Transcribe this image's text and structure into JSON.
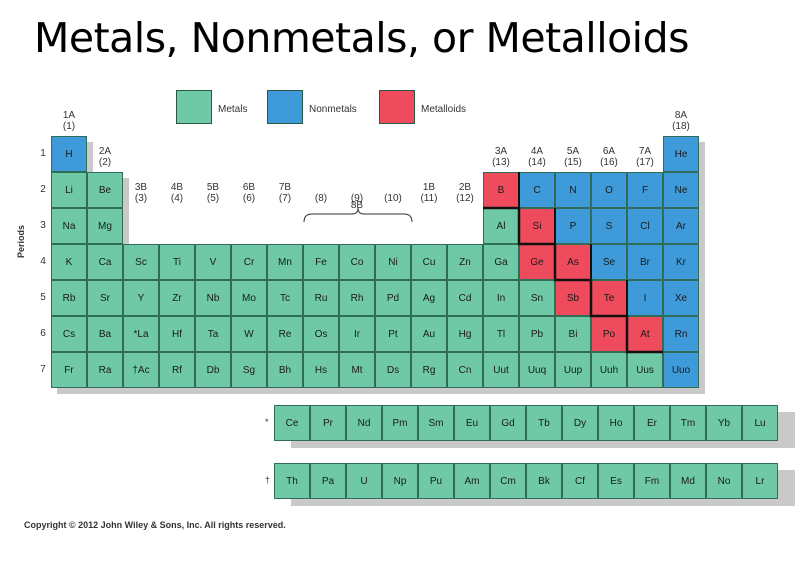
{
  "title": "Metals, Nonmetals, or Metalloids",
  "legend": [
    {
      "label": "Metals",
      "color": "#6fc9a7"
    },
    {
      "label": "Nonmetals",
      "color": "#3f9ad9"
    },
    {
      "label": "Metalloids",
      "color": "#ee4c5c"
    }
  ],
  "colors": {
    "metal": "#6fc9a7",
    "nonmetal": "#3f9ad9",
    "metalloid": "#ee4c5c"
  },
  "periods_label": "Periods",
  "periods": [
    "1",
    "2",
    "3",
    "4",
    "5",
    "6",
    "7"
  ],
  "group_headers": [
    {
      "col": 0,
      "row": 0,
      "label": "1A",
      "num": "(1)"
    },
    {
      "col": 1,
      "row": 1,
      "label": "2A",
      "num": "(2)"
    },
    {
      "col": 2,
      "row": 2,
      "label": "3B",
      "num": "(3)"
    },
    {
      "col": 3,
      "row": 2,
      "label": "4B",
      "num": "(4)"
    },
    {
      "col": 4,
      "row": 2,
      "label": "5B",
      "num": "(5)"
    },
    {
      "col": 5,
      "row": 2,
      "label": "6B",
      "num": "(6)"
    },
    {
      "col": 6,
      "row": 2,
      "label": "7B",
      "num": "(7)"
    },
    {
      "col": 7,
      "row": 2,
      "label": "",
      "num": "(8)"
    },
    {
      "col": 8,
      "row": 2,
      "label": "",
      "num": "(9)"
    },
    {
      "col": 9,
      "row": 2,
      "label": "",
      "num": "(10)"
    },
    {
      "col": 10,
      "row": 2,
      "label": "1B",
      "num": "(11)"
    },
    {
      "col": 11,
      "row": 2,
      "label": "2B",
      "num": "(12)"
    },
    {
      "col": 12,
      "row": 1,
      "label": "3A",
      "num": "(13)"
    },
    {
      "col": 13,
      "row": 1,
      "label": "4A",
      "num": "(14)"
    },
    {
      "col": 14,
      "row": 1,
      "label": "5A",
      "num": "(15)"
    },
    {
      "col": 15,
      "row": 1,
      "label": "6A",
      "num": "(16)"
    },
    {
      "col": 16,
      "row": 1,
      "label": "7A",
      "num": "(17)"
    },
    {
      "col": 17,
      "row": 0,
      "label": "8A",
      "num": "(18)"
    }
  ],
  "group_8b_label": "8B",
  "elements": [
    [
      "H",
      "nonmetal",
      0,
      0
    ],
    [
      "He",
      "nonmetal",
      17,
      0
    ],
    [
      "Li",
      "metal",
      0,
      1
    ],
    [
      "Be",
      "metal",
      1,
      1
    ],
    [
      "B",
      "metalloid",
      12,
      1
    ],
    [
      "C",
      "nonmetal",
      13,
      1
    ],
    [
      "N",
      "nonmetal",
      14,
      1
    ],
    [
      "O",
      "nonmetal",
      15,
      1
    ],
    [
      "F",
      "nonmetal",
      16,
      1
    ],
    [
      "Ne",
      "nonmetal",
      17,
      1
    ],
    [
      "Na",
      "metal",
      0,
      2
    ],
    [
      "Mg",
      "metal",
      1,
      2
    ],
    [
      "Al",
      "metal",
      12,
      2
    ],
    [
      "Si",
      "metalloid",
      13,
      2
    ],
    [
      "P",
      "nonmetal",
      14,
      2
    ],
    [
      "S",
      "nonmetal",
      15,
      2
    ],
    [
      "Cl",
      "nonmetal",
      16,
      2
    ],
    [
      "Ar",
      "nonmetal",
      17,
      2
    ],
    [
      "K",
      "metal",
      0,
      3
    ],
    [
      "Ca",
      "metal",
      1,
      3
    ],
    [
      "Sc",
      "metal",
      2,
      3
    ],
    [
      "Ti",
      "metal",
      3,
      3
    ],
    [
      "V",
      "metal",
      4,
      3
    ],
    [
      "Cr",
      "metal",
      5,
      3
    ],
    [
      "Mn",
      "metal",
      6,
      3
    ],
    [
      "Fe",
      "metal",
      7,
      3
    ],
    [
      "Co",
      "metal",
      8,
      3
    ],
    [
      "Ni",
      "metal",
      9,
      3
    ],
    [
      "Cu",
      "metal",
      10,
      3
    ],
    [
      "Zn",
      "metal",
      11,
      3
    ],
    [
      "Ga",
      "metal",
      12,
      3
    ],
    [
      "Ge",
      "metalloid",
      13,
      3
    ],
    [
      "As",
      "metalloid",
      14,
      3
    ],
    [
      "Se",
      "nonmetal",
      15,
      3
    ],
    [
      "Br",
      "nonmetal",
      16,
      3
    ],
    [
      "Kr",
      "nonmetal",
      17,
      3
    ],
    [
      "Rb",
      "metal",
      0,
      4
    ],
    [
      "Sr",
      "metal",
      1,
      4
    ],
    [
      "Y",
      "metal",
      2,
      4
    ],
    [
      "Zr",
      "metal",
      3,
      4
    ],
    [
      "Nb",
      "metal",
      4,
      4
    ],
    [
      "Mo",
      "metal",
      5,
      4
    ],
    [
      "Tc",
      "metal",
      6,
      4
    ],
    [
      "Ru",
      "metal",
      7,
      4
    ],
    [
      "Rh",
      "metal",
      8,
      4
    ],
    [
      "Pd",
      "metal",
      9,
      4
    ],
    [
      "Ag",
      "metal",
      10,
      4
    ],
    [
      "Cd",
      "metal",
      11,
      4
    ],
    [
      "In",
      "metal",
      12,
      4
    ],
    [
      "Sn",
      "metal",
      13,
      4
    ],
    [
      "Sb",
      "metalloid",
      14,
      4
    ],
    [
      "Te",
      "metalloid",
      15,
      4
    ],
    [
      "I",
      "nonmetal",
      16,
      4
    ],
    [
      "Xe",
      "nonmetal",
      17,
      4
    ],
    [
      "Cs",
      "metal",
      0,
      5
    ],
    [
      "Ba",
      "metal",
      1,
      5
    ],
    [
      "*La",
      "metal",
      2,
      5
    ],
    [
      "Hf",
      "metal",
      3,
      5
    ],
    [
      "Ta",
      "metal",
      4,
      5
    ],
    [
      "W",
      "metal",
      5,
      5
    ],
    [
      "Re",
      "metal",
      6,
      5
    ],
    [
      "Os",
      "metal",
      7,
      5
    ],
    [
      "Ir",
      "metal",
      8,
      5
    ],
    [
      "Pt",
      "metal",
      9,
      5
    ],
    [
      "Au",
      "metal",
      10,
      5
    ],
    [
      "Hg",
      "metal",
      11,
      5
    ],
    [
      "Tl",
      "metal",
      12,
      5
    ],
    [
      "Pb",
      "metal",
      13,
      5
    ],
    [
      "Bi",
      "metal",
      14,
      5
    ],
    [
      "Po",
      "metalloid",
      15,
      5
    ],
    [
      "At",
      "metalloid",
      16,
      5
    ],
    [
      "Rn",
      "nonmetal",
      17,
      5
    ],
    [
      "Fr",
      "metal",
      0,
      6
    ],
    [
      "Ra",
      "metal",
      1,
      6
    ],
    [
      "†Ac",
      "metal",
      2,
      6
    ],
    [
      "Rf",
      "metal",
      3,
      6
    ],
    [
      "Db",
      "metal",
      4,
      6
    ],
    [
      "Sg",
      "metal",
      5,
      6
    ],
    [
      "Bh",
      "metal",
      6,
      6
    ],
    [
      "Hs",
      "metal",
      7,
      6
    ],
    [
      "Mt",
      "metal",
      8,
      6
    ],
    [
      "Ds",
      "metal",
      9,
      6
    ],
    [
      "Rg",
      "metal",
      10,
      6
    ],
    [
      "Cn",
      "metal",
      11,
      6
    ],
    [
      "Uut",
      "metal",
      12,
      6
    ],
    [
      "Uuq",
      "metal",
      13,
      6
    ],
    [
      "Uup",
      "metal",
      14,
      6
    ],
    [
      "Uuh",
      "metal",
      15,
      6
    ],
    [
      "Uus",
      "metal",
      16,
      6
    ],
    [
      "Uuo",
      "nonmetal",
      17,
      6
    ]
  ],
  "lanthanides_marker": "*",
  "lanthanides": [
    "Ce",
    "Pr",
    "Nd",
    "Pm",
    "Sm",
    "Eu",
    "Gd",
    "Tb",
    "Dy",
    "Ho",
    "Er",
    "Tm",
    "Yb",
    "Lu"
  ],
  "actinides_marker": "†",
  "actinides": [
    "Th",
    "Pa",
    "U",
    "Np",
    "Pu",
    "Am",
    "Cm",
    "Bk",
    "Cf",
    "Es",
    "Fm",
    "Md",
    "No",
    "Lr"
  ],
  "copyright": "Copyright © 2012 John Wiley & Sons, Inc. All rights reserved."
}
